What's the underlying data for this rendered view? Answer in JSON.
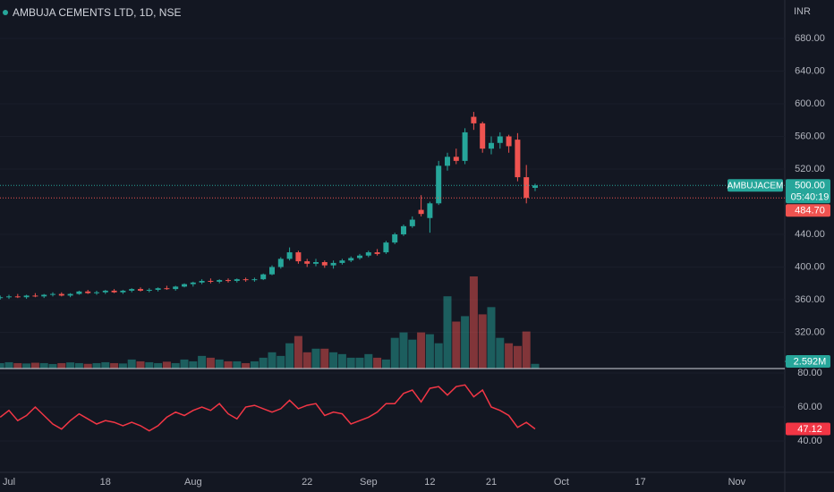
{
  "chart_data": [
    {
      "type": "candlestick",
      "title": "AMBUJA CEMENTS LTD, 1D, NSE",
      "currency": "INR",
      "symbol": "AMBUJACEM",
      "countdown": "05:40:19",
      "up_color": "#26a69a",
      "down_color": "#ef5350",
      "categories": [
        null,
        "Jul",
        null,
        null,
        null,
        null,
        null,
        null,
        null,
        null,
        null,
        null,
        "18",
        null,
        null,
        null,
        null,
        null,
        null,
        null,
        null,
        null,
        "Aug",
        null,
        null,
        null,
        null,
        null,
        null,
        null,
        null,
        null,
        null,
        null,
        null,
        "22",
        null,
        null,
        null,
        null,
        null,
        null,
        "Sep",
        null,
        null,
        null,
        null,
        null,
        null,
        "12",
        null,
        null,
        null,
        null,
        null,
        null,
        "21",
        null,
        null,
        null,
        null,
        null,
        null,
        null,
        "Oct",
        null,
        null,
        null,
        null,
        null,
        null,
        null,
        null,
        "17",
        null,
        null,
        null,
        null,
        null,
        null,
        null,
        null,
        null,
        null,
        "Nov",
        null,
        null,
        null,
        null
      ],
      "open": [
        362,
        363,
        364,
        363,
        365,
        364,
        366,
        367,
        365,
        367,
        370,
        368,
        369,
        371,
        369,
        371,
        373,
        371,
        372,
        374,
        373,
        376,
        379,
        381,
        383,
        382,
        384,
        383,
        385,
        384,
        385,
        391,
        400,
        410,
        418,
        407,
        404,
        406,
        402,
        405,
        408,
        411,
        414,
        418,
        418,
        430,
        440,
        450,
        470,
        460,
        478,
        524,
        535,
        530,
        584,
        576,
        545,
        552,
        560,
        556,
        510,
        497,
        null,
        null,
        null,
        null,
        null,
        null,
        null,
        null,
        null,
        null,
        null,
        null,
        null,
        null,
        null,
        null,
        null,
        null,
        null,
        null,
        null,
        null,
        null,
        null,
        null,
        null,
        null
      ],
      "high": [
        365,
        366,
        367,
        366,
        368,
        367,
        369,
        369,
        368,
        371,
        372,
        371,
        372,
        373,
        372,
        374,
        375,
        374,
        375,
        377,
        377,
        380,
        382,
        385,
        386,
        385,
        386,
        386,
        387,
        387,
        392,
        402,
        412,
        424,
        420,
        410,
        410,
        408,
        408,
        410,
        413,
        416,
        420,
        422,
        432,
        442,
        452,
        462,
        488,
        480,
        530,
        540,
        545,
        570,
        590,
        578,
        560,
        565,
        562,
        564,
        525,
        502,
        null,
        null,
        null,
        null,
        null,
        null,
        null,
        null,
        null,
        null,
        null,
        null,
        null,
        null,
        null,
        null,
        null,
        null,
        null,
        null,
        null,
        null,
        null,
        null,
        null,
        null,
        null
      ],
      "low": [
        360,
        361,
        362,
        361,
        363,
        362,
        364,
        364,
        363,
        366,
        367,
        366,
        367,
        368,
        367,
        369,
        370,
        369,
        370,
        372,
        371,
        375,
        376,
        379,
        380,
        380,
        381,
        381,
        382,
        382,
        384,
        390,
        398,
        408,
        404,
        400,
        401,
        399,
        398,
        403,
        406,
        409,
        412,
        414,
        416,
        428,
        438,
        448,
        462,
        442,
        476,
        518,
        526,
        526,
        568,
        540,
        538,
        545,
        540,
        505,
        478,
        493,
        null,
        null,
        null,
        null,
        null,
        null,
        null,
        null,
        null,
        null,
        null,
        null,
        null,
        null,
        null,
        null,
        null,
        null,
        null,
        null,
        null,
        null,
        null,
        null,
        null,
        null,
        null
      ],
      "close": [
        363,
        364,
        363,
        365,
        364,
        366,
        367,
        365,
        367,
        370,
        368,
        369,
        371,
        369,
        371,
        373,
        371,
        372,
        374,
        373,
        376,
        379,
        381,
        383,
        382,
        384,
        383,
        385,
        384,
        385,
        391,
        400,
        410,
        418,
        407,
        404,
        406,
        402,
        405,
        408,
        411,
        414,
        418,
        416,
        430,
        440,
        450,
        458,
        465,
        478,
        524,
        535,
        530,
        565,
        576,
        545,
        552,
        560,
        548,
        510,
        484.7,
        500,
        null,
        null,
        null,
        null,
        null,
        null,
        null,
        null,
        null,
        null,
        null,
        null,
        null,
        null,
        null,
        null,
        null,
        null,
        null,
        null,
        null,
        null,
        null,
        null,
        null,
        null,
        null
      ],
      "volume": [
        3,
        3.5,
        3,
        2.8,
        3.2,
        3,
        2.5,
        3,
        3.4,
        3,
        2.6,
        3,
        3.5,
        3,
        2.8,
        5,
        4,
        3.5,
        3,
        3.8,
        3,
        5,
        4,
        7,
        6,
        5,
        4,
        4,
        3,
        4,
        6,
        9,
        7,
        14,
        18,
        9,
        11,
        11,
        9,
        8,
        6,
        6,
        8,
        6,
        5,
        17,
        20,
        16,
        20,
        19,
        14,
        40,
        26,
        29,
        51,
        30,
        34,
        17,
        14,
        12.5,
        20.5,
        2.592,
        null,
        null,
        null,
        null,
        null,
        null,
        null,
        null,
        null,
        null,
        null,
        null,
        null,
        null,
        null,
        null,
        null,
        null,
        null,
        null,
        null,
        null,
        null,
        null,
        null,
        null,
        null
      ],
      "last_price": {
        "value": 500,
        "label": "500.00"
      },
      "prev_close": {
        "value": 484.7,
        "label": "484.70"
      },
      "last_volume": {
        "value": 2.592,
        "label": "2.592M"
      },
      "ylim": [
        275.6,
        727.1
      ],
      "yticks": [
        {
          "value": 320,
          "label": "320.00"
        },
        {
          "value": 360,
          "label": "360.00"
        },
        {
          "value": 400,
          "label": "400.00"
        },
        {
          "value": 440,
          "label": "440.00"
        },
        {
          "value": 520,
          "label": "520.00"
        },
        {
          "value": 560,
          "label": "560.00"
        },
        {
          "value": 600,
          "label": "600.00"
        },
        {
          "value": 640,
          "label": "640.00"
        },
        {
          "value": 680,
          "label": "680.00"
        }
      ]
    },
    {
      "type": "line",
      "color": "#f23645",
      "values": [
        54,
        58,
        52,
        55,
        60,
        55,
        50,
        47,
        52,
        56,
        53,
        50,
        52,
        51,
        49,
        51,
        49,
        46,
        49,
        54,
        57,
        55,
        58,
        60,
        58,
        62,
        56,
        53,
        60,
        61,
        59,
        57,
        59,
        64,
        59,
        61,
        62,
        55,
        57,
        56,
        50,
        52,
        54,
        57,
        62,
        62,
        68,
        70,
        63,
        71,
        72,
        67,
        72,
        73,
        66,
        70,
        60,
        58,
        55,
        48,
        51,
        47.12,
        null,
        null,
        null,
        null,
        null,
        null,
        null,
        null,
        null,
        null,
        null,
        null,
        null,
        null,
        null,
        null,
        null,
        null,
        null,
        null,
        null,
        null,
        null,
        null,
        null,
        null,
        null
      ],
      "ylim": [
        21.6,
        82.1
      ],
      "yticks": [
        {
          "value": 40,
          "label": "40.00"
        },
        {
          "value": 60,
          "label": "60.00"
        },
        {
          "value": 80,
          "label": "80.00"
        }
      ]
    }
  ]
}
